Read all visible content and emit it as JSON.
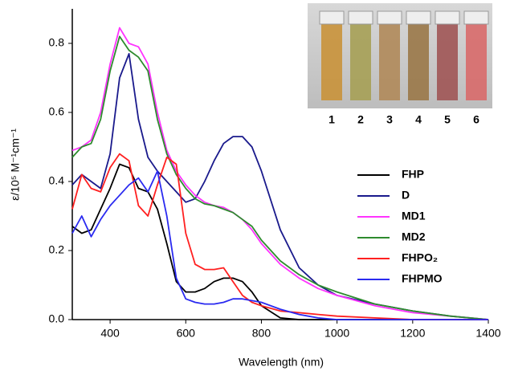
{
  "chart_data": {
    "type": "line",
    "xlabel": "Wavelength (nm)",
    "ylabel": "ε/10⁵ M⁻¹cm⁻¹",
    "x": [
      300,
      325,
      350,
      375,
      400,
      425,
      450,
      475,
      500,
      525,
      550,
      575,
      600,
      625,
      650,
      675,
      700,
      725,
      750,
      775,
      800,
      850,
      900,
      950,
      1000,
      1100,
      1200,
      1300,
      1400
    ],
    "series": [
      {
        "name": "FHP",
        "color": "#000000",
        "values": [
          0.27,
          0.25,
          0.26,
          0.32,
          0.38,
          0.45,
          0.44,
          0.38,
          0.37,
          0.32,
          0.22,
          0.11,
          0.08,
          0.08,
          0.09,
          0.11,
          0.12,
          0.12,
          0.11,
          0.08,
          0.04,
          0.005,
          0,
          0,
          0,
          0,
          0,
          0,
          0
        ]
      },
      {
        "name": "D",
        "color": "#1a1a8c",
        "values": [
          0.39,
          0.42,
          0.4,
          0.38,
          0.48,
          0.7,
          0.77,
          0.58,
          0.47,
          0.43,
          0.4,
          0.37,
          0.34,
          0.35,
          0.4,
          0.46,
          0.51,
          0.53,
          0.53,
          0.5,
          0.43,
          0.26,
          0.15,
          0.1,
          0.07,
          0.045,
          0.025,
          0.01,
          0
        ]
      },
      {
        "name": "MD1",
        "color": "#ff33ff",
        "values": [
          0.49,
          0.5,
          0.52,
          0.6,
          0.74,
          0.845,
          0.8,
          0.79,
          0.74,
          0.6,
          0.49,
          0.43,
          0.39,
          0.36,
          0.34,
          0.33,
          0.325,
          0.31,
          0.29,
          0.26,
          0.22,
          0.16,
          0.12,
          0.09,
          0.07,
          0.04,
          0.02,
          0.01,
          0
        ]
      },
      {
        "name": "MD2",
        "color": "#2e8b2e",
        "values": [
          0.47,
          0.5,
          0.51,
          0.58,
          0.72,
          0.82,
          0.78,
          0.76,
          0.72,
          0.58,
          0.48,
          0.42,
          0.38,
          0.35,
          0.335,
          0.33,
          0.32,
          0.31,
          0.29,
          0.27,
          0.23,
          0.17,
          0.13,
          0.1,
          0.08,
          0.045,
          0.025,
          0.01,
          0
        ]
      },
      {
        "name": "FHPO₂",
        "color": "#ff2020",
        "values": [
          0.32,
          0.42,
          0.38,
          0.37,
          0.44,
          0.48,
          0.46,
          0.33,
          0.3,
          0.39,
          0.47,
          0.45,
          0.25,
          0.16,
          0.145,
          0.145,
          0.15,
          0.11,
          0.07,
          0.05,
          0.04,
          0.025,
          0.02,
          0.015,
          0.01,
          0.005,
          0,
          0,
          0
        ]
      },
      {
        "name": "FHPMO",
        "color": "#2a2af0",
        "values": [
          0.25,
          0.3,
          0.24,
          0.29,
          0.33,
          0.36,
          0.39,
          0.41,
          0.37,
          0.43,
          0.3,
          0.12,
          0.06,
          0.05,
          0.045,
          0.045,
          0.05,
          0.06,
          0.06,
          0.055,
          0.05,
          0.03,
          0.015,
          0.005,
          0,
          0,
          0,
          0,
          0
        ]
      }
    ],
    "xlim": [
      300,
      1400
    ],
    "xticks": [
      400,
      600,
      800,
      1000,
      1200,
      1400
    ],
    "ylim": [
      0,
      0.9
    ],
    "yticks": [
      {
        "value": 0,
        "label": "0.0"
      },
      {
        "value": 0.2,
        "label": "0.2"
      },
      {
        "value": 0.4,
        "label": "0.4"
      },
      {
        "value": 0.6,
        "label": "0.6"
      },
      {
        "value": 0.8,
        "label": "0.8"
      }
    ],
    "inset_labels": [
      "1",
      "2",
      "3",
      "4",
      "5",
      "6"
    ]
  }
}
